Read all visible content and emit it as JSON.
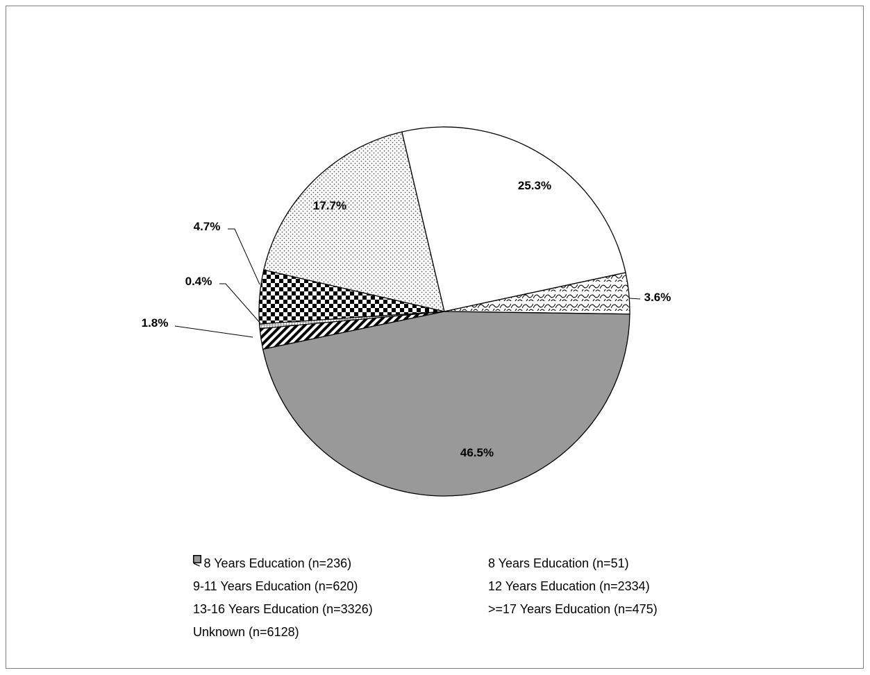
{
  "chart_data": {
    "type": "pie",
    "title": "",
    "slices": [
      {
        "label": "< 8 Years Education (n=236)",
        "value": 1.8,
        "data_label": "1.8%",
        "pattern": "diag-stripes"
      },
      {
        "label": "8 Years Education (n=51)",
        "value": 0.4,
        "data_label": "0.4%",
        "pattern": "light-grid"
      },
      {
        "label": "9-11 Years Education (n=620)",
        "value": 4.7,
        "data_label": "4.7%",
        "pattern": "checker"
      },
      {
        "label": "12 Years Education (n=2334)",
        "value": 17.7,
        "data_label": "17.7%",
        "pattern": "dots"
      },
      {
        "label": "13-16 Years Education (n=3326)",
        "value": 25.3,
        "data_label": "25.3%",
        "pattern": "white"
      },
      {
        "label": ">=17 Years Education (n=475)",
        "value": 3.6,
        "data_label": "3.6%",
        "pattern": "waves"
      },
      {
        "label": "Unknown (n=6128)",
        "value": 46.5,
        "data_label": "46.5%",
        "pattern": "gray"
      }
    ],
    "legend_placement": "bottom",
    "colors": {
      "unknown": "#999999",
      "outline": "#000000"
    }
  }
}
